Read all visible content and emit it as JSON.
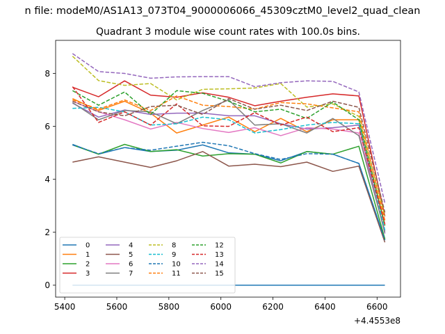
{
  "figure": {
    "suptitle": "n file: modeM0/AS1A13_073T04_9000006066_45309cztM0_level2_quad_clean",
    "title": "Quadrant 3 module wise count rates with 100.0s bins.",
    "offset_label": "+4.4553e8"
  },
  "colors": {
    "0": "#1f77b4",
    "1": "#ff7f0e",
    "2": "#2ca02c",
    "3": "#d62728",
    "4": "#9467bd",
    "5": "#8c564b",
    "6": "#e377c2",
    "7": "#7f7f7f",
    "8": "#bcbd22",
    "9": "#17becf"
  },
  "chart_data": {
    "type": "line",
    "title": "Quadrant 3 module wise count rates with 100.0s bins.",
    "x_offset": 445530000,
    "x": [
      5430,
      5530,
      5630,
      5730,
      5830,
      5930,
      6030,
      6130,
      6230,
      6330,
      6430,
      6530,
      6630
    ],
    "xlim": [
      5365,
      6690
    ],
    "ylim": [
      -0.45,
      9.25
    ],
    "xticks": [
      5400,
      5600,
      5800,
      6000,
      6200,
      6400,
      6600
    ],
    "xtick_labels": [
      "5400",
      "5600",
      "5800",
      "6000",
      "6200",
      "6400",
      "6600"
    ],
    "yticks": [
      0,
      2,
      4,
      6,
      8
    ],
    "ytick_labels": [
      "0",
      "2",
      "4",
      "6",
      "8"
    ],
    "grid": false,
    "legend": {
      "position": "lower-left",
      "columns": 4
    },
    "series": [
      {
        "name": "0",
        "color": "#1f77b4",
        "dash": "solid",
        "values": [
          5.32,
          4.95,
          5.2,
          5.05,
          5.1,
          5.3,
          5.0,
          4.95,
          4.7,
          5.05,
          4.95,
          4.6,
          1.72
        ]
      },
      {
        "name": "1",
        "color": "#ff7f0e",
        "dash": "solid",
        "values": [
          7.05,
          6.6,
          6.95,
          6.5,
          5.75,
          6.05,
          6.35,
          5.8,
          6.3,
          5.8,
          6.25,
          6.25,
          2.3
        ]
      },
      {
        "name": "2",
        "color": "#2ca02c",
        "dash": "solid",
        "values": [
          5.3,
          4.95,
          5.32,
          5.05,
          5.12,
          4.88,
          4.97,
          4.95,
          4.62,
          5.05,
          4.95,
          5.25,
          1.75
        ]
      },
      {
        "name": "3",
        "color": "#d62728",
        "dash": "solid",
        "values": [
          7.48,
          7.12,
          7.72,
          7.18,
          7.1,
          7.27,
          7.1,
          6.78,
          6.95,
          7.1,
          7.23,
          7.15,
          2.6
        ]
      },
      {
        "name": "4",
        "color": "#9467bd",
        "dash": "solid",
        "values": [
          6.88,
          6.35,
          6.62,
          6.45,
          6.5,
          6.5,
          6.4,
          6.4,
          6.1,
          5.9,
          5.95,
          6.05,
          1.95
        ]
      },
      {
        "name": "5",
        "color": "#8c564b",
        "dash": "solid",
        "values": [
          4.65,
          4.85,
          4.65,
          4.45,
          4.7,
          5.05,
          4.5,
          4.57,
          4.48,
          4.65,
          4.3,
          4.5,
          1.62
        ]
      },
      {
        "name": "6",
        "color": "#e377c2",
        "dash": "solid",
        "values": [
          6.95,
          6.55,
          6.25,
          5.9,
          6.15,
          5.92,
          5.77,
          5.95,
          5.65,
          5.95,
          5.9,
          5.75,
          2.05
        ]
      },
      {
        "name": "7",
        "color": "#7f7f7f",
        "dash": "solid",
        "values": [
          6.9,
          6.25,
          6.6,
          6.55,
          6.1,
          6.6,
          7.0,
          6.05,
          6.1,
          5.75,
          6.3,
          5.65,
          2.0
        ]
      },
      {
        "name": "8",
        "color": "#bcbd22",
        "dash": "dashed",
        "values": [
          8.65,
          7.73,
          7.55,
          7.62,
          7.0,
          7.4,
          7.42,
          7.45,
          7.62,
          6.73,
          6.85,
          6.38,
          2.62
        ]
      },
      {
        "name": "9",
        "color": "#17becf",
        "dash": "dashed",
        "values": [
          6.68,
          6.72,
          6.55,
          6.05,
          6.1,
          6.35,
          6.25,
          5.75,
          5.88,
          6.05,
          6.15,
          6.1,
          2.08
        ]
      },
      {
        "name": "10",
        "color": "#1f77b4",
        "dash": "dashed",
        "values": [
          5.3,
          4.97,
          5.2,
          5.1,
          5.25,
          5.4,
          5.27,
          4.97,
          4.75,
          4.97,
          4.95,
          4.6,
          1.7
        ]
      },
      {
        "name": "11",
        "color": "#ff7f0e",
        "dash": "dashed",
        "values": [
          7.0,
          6.65,
          7.0,
          6.6,
          7.15,
          6.8,
          6.75,
          6.65,
          6.9,
          6.85,
          6.7,
          6.55,
          2.45
        ]
      },
      {
        "name": "12",
        "color": "#2ca02c",
        "dash": "dashed",
        "values": [
          7.35,
          6.8,
          7.3,
          6.45,
          7.35,
          7.25,
          6.95,
          6.55,
          6.65,
          6.3,
          6.92,
          6.25,
          2.25
        ]
      },
      {
        "name": "13",
        "color": "#d62728",
        "dash": "dashed",
        "values": [
          7.5,
          6.15,
          6.55,
          6.05,
          6.85,
          6.02,
          6.0,
          6.52,
          6.05,
          6.35,
          5.8,
          5.95,
          2.3
        ]
      },
      {
        "name": "14",
        "color": "#9467bd",
        "dash": "dashed",
        "values": [
          8.75,
          8.07,
          8.0,
          7.82,
          7.87,
          7.88,
          7.88,
          7.5,
          7.65,
          7.72,
          7.7,
          7.3,
          3.1
        ]
      },
      {
        "name": "15",
        "color": "#8c564b",
        "dash": "dashed",
        "values": [
          6.95,
          6.55,
          6.4,
          6.75,
          6.8,
          6.45,
          7.05,
          6.65,
          6.8,
          6.6,
          6.95,
          6.72,
          2.75
        ]
      },
      {
        "name": "",
        "color": "#1f77b4",
        "dash": "solid",
        "values": [
          0,
          0,
          0,
          0,
          0,
          0,
          0,
          0,
          0,
          0,
          0,
          0,
          0
        ]
      }
    ]
  }
}
